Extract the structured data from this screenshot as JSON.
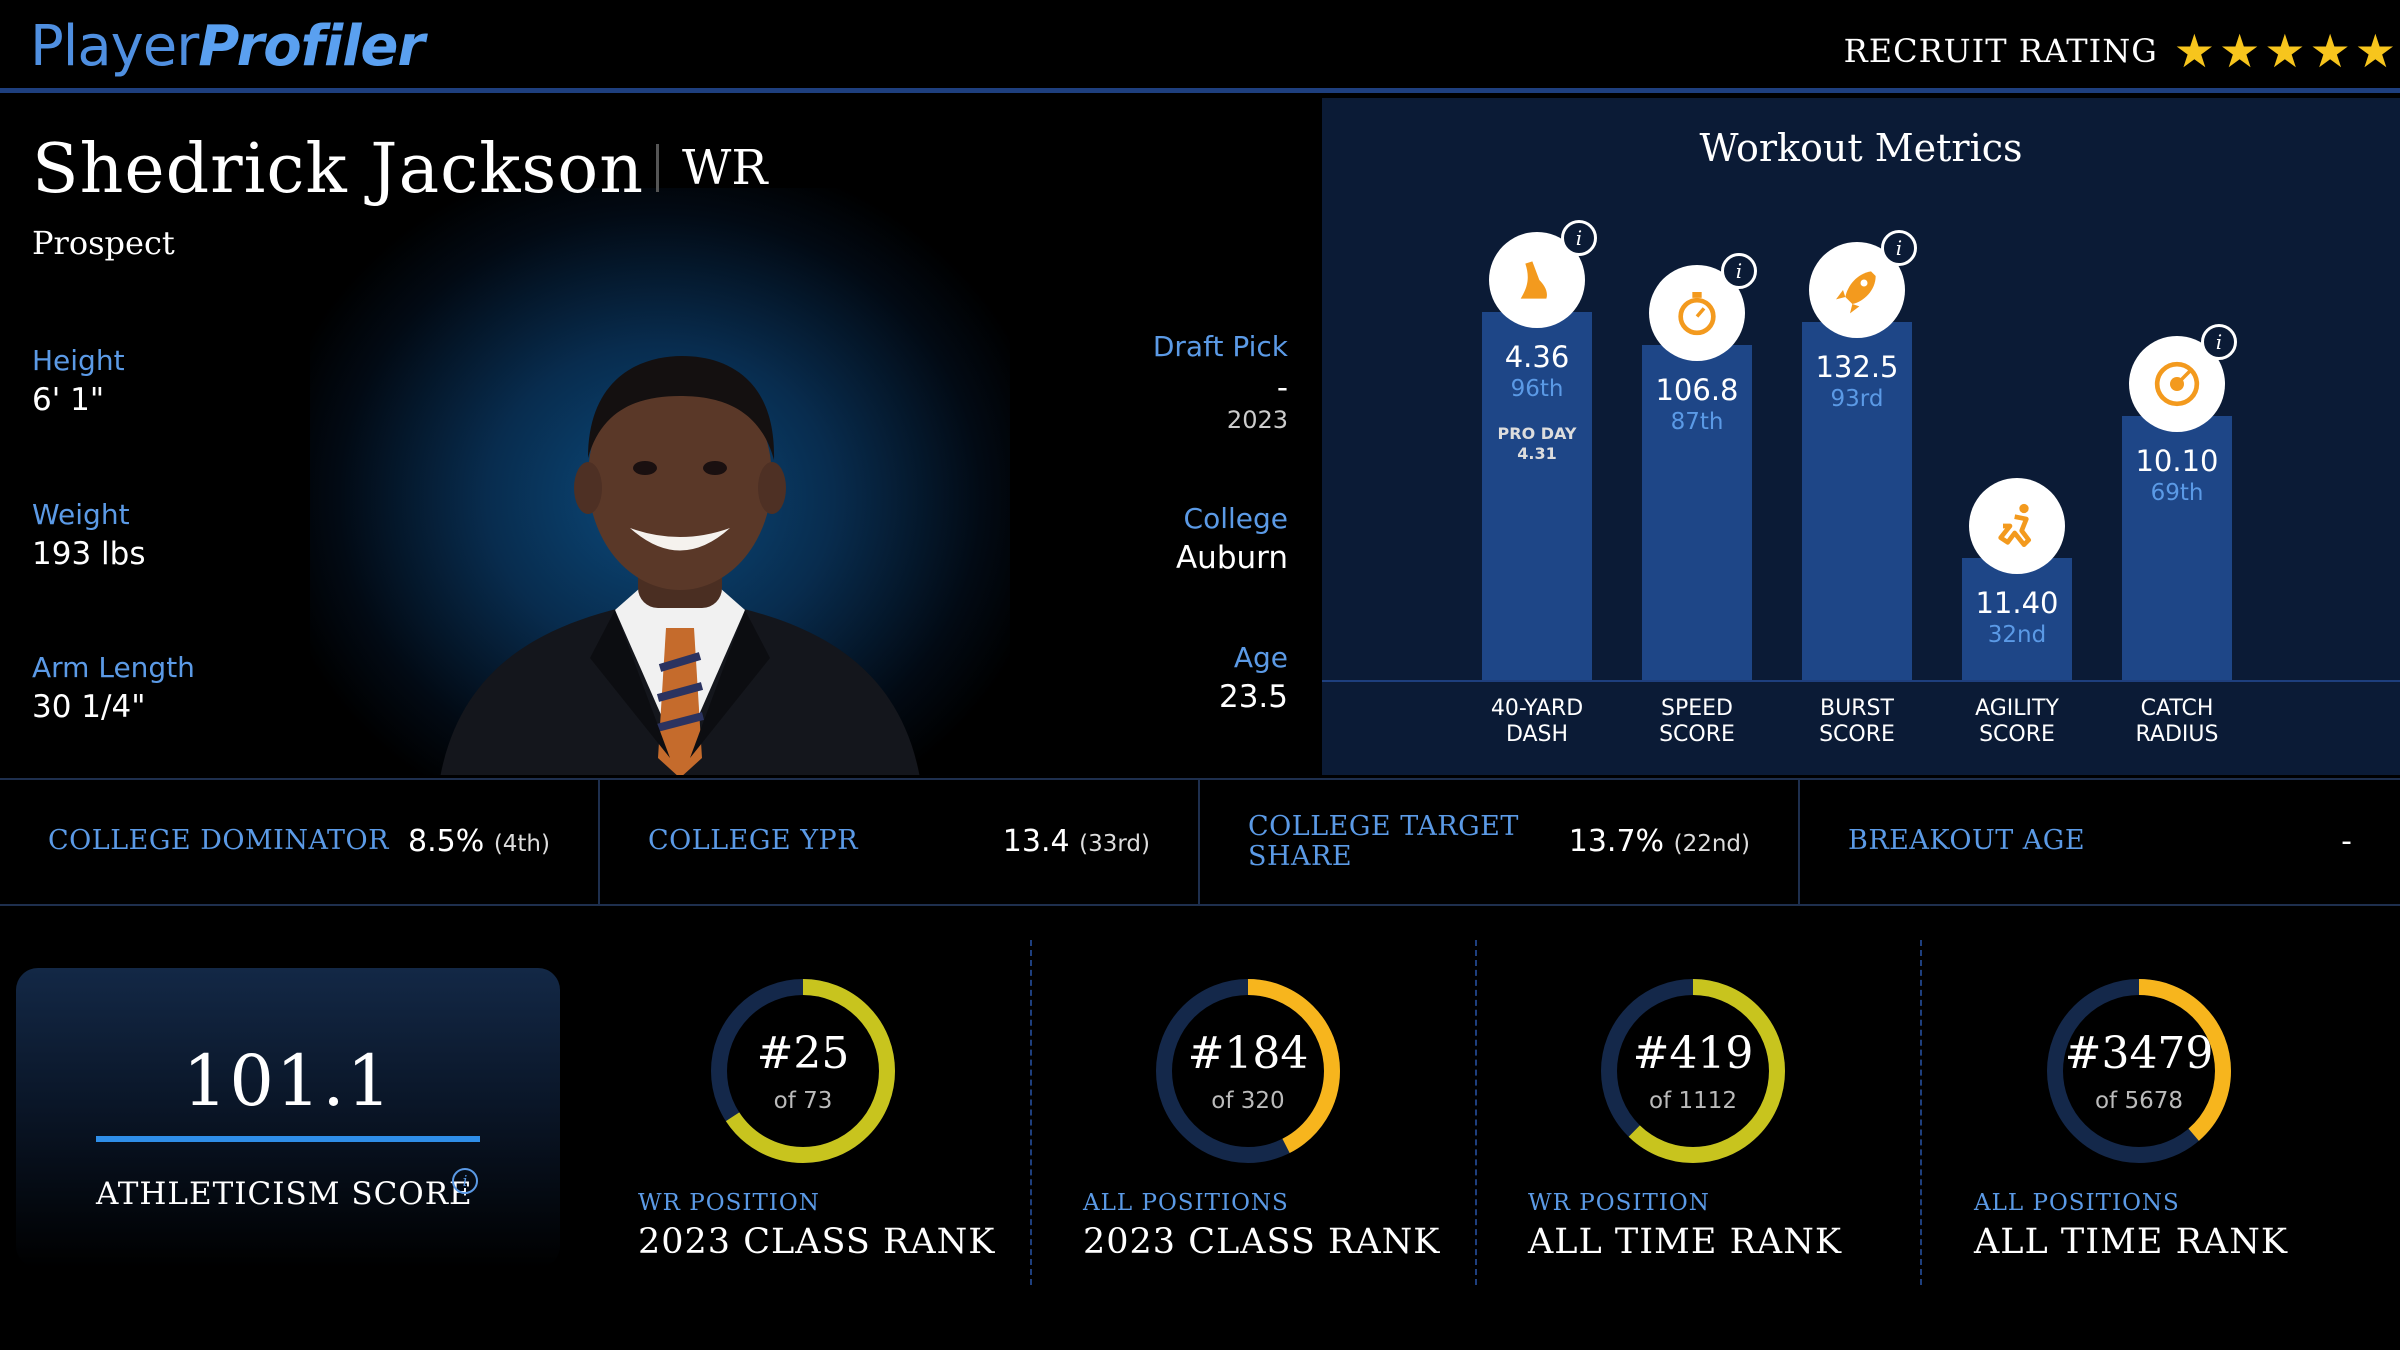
{
  "header": {
    "logo_part1": "Player",
    "logo_part2": "Profiler",
    "recruit_label": "RECRUIT RATING",
    "stars": "★★★★★",
    "star_color": "#f7c51d"
  },
  "bio": {
    "name": "Shedrick Jackson",
    "position": "WR",
    "status": "Prospect",
    "height_label": "Height",
    "height": "6' 1\"",
    "weight_label": "Weight",
    "weight": "193 lbs",
    "arm_label": "Arm Length",
    "arm": "30 1/4\"",
    "draft_label": "Draft Pick",
    "draft": "-",
    "draft_year": "2023",
    "college_label": "College",
    "college": "Auburn",
    "age_label": "Age",
    "age": "23.5"
  },
  "workout": {
    "title": "Workout Metrics",
    "metrics": [
      {
        "line1": "40-YARD",
        "line2": "DASH",
        "value": "4.36",
        "percentile": "96th",
        "pro_day_label": "PRO DAY",
        "pro_day": "4.31",
        "icon": "shoe-icon",
        "has_info": true
      },
      {
        "line1": "SPEED",
        "line2": "SCORE",
        "value": "106.8",
        "percentile": "87th",
        "icon": "stopwatch-icon",
        "has_info": true
      },
      {
        "line1": "BURST",
        "line2": "SCORE",
        "value": "132.5",
        "percentile": "93rd",
        "icon": "rocket-icon",
        "has_info": true
      },
      {
        "line1": "AGILITY",
        "line2": "SCORE",
        "value": "11.40",
        "percentile": "32nd",
        "icon": "runner-icon",
        "has_info": false
      },
      {
        "line1": "CATCH",
        "line2": "RADIUS",
        "value": "10.10",
        "percentile": "69th",
        "icon": "target-icon",
        "has_info": true
      }
    ]
  },
  "stats": [
    {
      "label": "COLLEGE DOMINATOR",
      "value": "8.5%",
      "rank": "(4th)"
    },
    {
      "label": "COLLEGE YPR",
      "value": "13.4",
      "rank": "(33rd)"
    },
    {
      "label_line1": "COLLEGE TARGET",
      "label_line2": "SHARE",
      "value": "13.7%",
      "rank": "(22nd)"
    },
    {
      "label": "BREAKOUT AGE",
      "value": "-",
      "rank": ""
    }
  ],
  "athleticism": {
    "score": "101.1",
    "label": "ATHLETICISM SCORE",
    "info": "i"
  },
  "ranks": [
    {
      "rank": "#25",
      "of": "of 73",
      "sub": "WR POSITION",
      "main": "2023 CLASS RANK",
      "fraction": 0.658,
      "color": "#c8c41e"
    },
    {
      "rank": "#184",
      "of": "of 320",
      "sub": "ALL POSITIONS",
      "main": "2023 CLASS RANK",
      "fraction": 0.425,
      "color": "#f7b51d"
    },
    {
      "rank": "#419",
      "of": "of 1112",
      "sub": "WR POSITION",
      "main": "ALL TIME RANK",
      "fraction": 0.623,
      "color": "#c8c41e"
    },
    {
      "rank": "#3479",
      "of": "of 5678",
      "sub": "ALL POSITIONS",
      "main": "ALL TIME RANK",
      "fraction": 0.387,
      "color": "#f7b51d"
    }
  ]
}
